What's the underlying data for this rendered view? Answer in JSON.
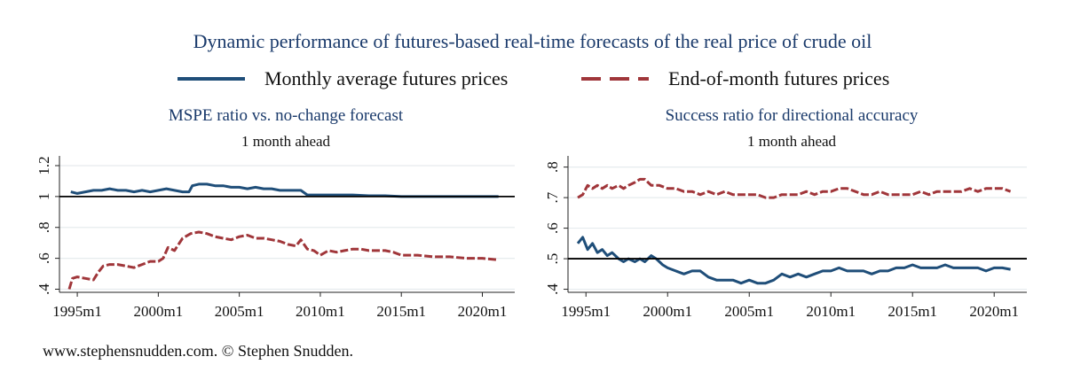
{
  "title": "Dynamic performance of futures-based real-time forecasts of the real price of crude oil",
  "legend": [
    {
      "name": "Monthly average futures prices",
      "color": "#1f4e79",
      "dash": "solid"
    },
    {
      "name": "End-of-month futures prices",
      "color": "#a0363a",
      "dash": "dashed"
    }
  ],
  "footer": "www.stephensnudden.com. © Stephen Snudden.",
  "chart_data": [
    {
      "type": "line",
      "title": "MSPE ratio vs. no-change forecast",
      "subtitle": "1 month ahead",
      "xlabel": "",
      "ylabel": "",
      "xlim": [
        1993.9,
        2022.0
      ],
      "ylim": [
        0.38,
        1.24
      ],
      "xticks": [
        1995,
        2000,
        2005,
        2010,
        2015,
        2020
      ],
      "xtick_labels": [
        "1995m1",
        "2000m1",
        "2005m1",
        "2010m1",
        "2015m1",
        "2020m1"
      ],
      "yticks": [
        0.4,
        0.6,
        0.8,
        1.0,
        1.2
      ],
      "ytick_labels": [
        ".4",
        ".6",
        ".8",
        "1",
        "1.2"
      ],
      "reference_line": 1.0,
      "grid": true,
      "series": [
        {
          "name": "Monthly average futures prices",
          "color": "#1f4e79",
          "dash": "solid",
          "x": [
            1994.6,
            1995.0,
            1995.5,
            1996.0,
            1996.5,
            1997.0,
            1997.5,
            1998.0,
            1998.5,
            1999.0,
            1999.5,
            2000.0,
            2000.5,
            2001.0,
            2001.5,
            2001.9,
            2002.1,
            2002.5,
            2003.0,
            2003.5,
            2004.0,
            2004.5,
            2005.0,
            2005.5,
            2006.0,
            2006.5,
            2007.0,
            2007.5,
            2008.0,
            2008.5,
            2008.8,
            2009.2,
            2010.0,
            2011.0,
            2012.0,
            2013.0,
            2014.0,
            2015.0,
            2016.0,
            2017.0,
            2018.0,
            2019.0,
            2020.0,
            2021.0
          ],
          "y": [
            1.03,
            1.02,
            1.03,
            1.04,
            1.04,
            1.05,
            1.04,
            1.04,
            1.03,
            1.04,
            1.03,
            1.04,
            1.05,
            1.04,
            1.03,
            1.03,
            1.07,
            1.08,
            1.08,
            1.07,
            1.07,
            1.06,
            1.06,
            1.05,
            1.06,
            1.05,
            1.05,
            1.04,
            1.04,
            1.04,
            1.04,
            1.01,
            1.01,
            1.01,
            1.01,
            1.005,
            1.005,
            1.0,
            1.0,
            1.0,
            1.0,
            1.0,
            1.0,
            1.0
          ]
        },
        {
          "name": "End-of-month futures prices",
          "color": "#a0363a",
          "dash": "dashed",
          "x": [
            1994.5,
            1994.7,
            1995.0,
            1995.5,
            1996.0,
            1996.3,
            1996.6,
            1997.0,
            1997.5,
            1998.0,
            1998.5,
            1999.0,
            1999.5,
            2000.0,
            2000.3,
            2000.6,
            2001.0,
            2001.5,
            2002.0,
            2002.5,
            2003.0,
            2003.5,
            2004.0,
            2004.5,
            2005.0,
            2005.5,
            2006.0,
            2006.5,
            2007.0,
            2007.5,
            2008.0,
            2008.5,
            2008.8,
            2009.2,
            2009.6,
            2010.0,
            2010.5,
            2011.0,
            2011.5,
            2012.0,
            2012.5,
            2013.0,
            2013.5,
            2014.0,
            2014.5,
            2015.0,
            2016.0,
            2017.0,
            2018.0,
            2019.0,
            2020.0,
            2021.0
          ],
          "y": [
            0.4,
            0.47,
            0.48,
            0.47,
            0.46,
            0.51,
            0.55,
            0.56,
            0.56,
            0.55,
            0.54,
            0.56,
            0.58,
            0.58,
            0.6,
            0.67,
            0.65,
            0.73,
            0.76,
            0.77,
            0.76,
            0.74,
            0.73,
            0.72,
            0.74,
            0.75,
            0.73,
            0.73,
            0.72,
            0.71,
            0.69,
            0.68,
            0.72,
            0.66,
            0.65,
            0.62,
            0.65,
            0.64,
            0.65,
            0.66,
            0.66,
            0.65,
            0.65,
            0.65,
            0.64,
            0.62,
            0.62,
            0.61,
            0.61,
            0.6,
            0.6,
            0.59
          ]
        }
      ]
    },
    {
      "type": "line",
      "title": "Success ratio for directional accuracy",
      "subtitle": "1 month ahead",
      "xlabel": "",
      "ylabel": "",
      "xlim": [
        1993.9,
        2022.0
      ],
      "ylim": [
        0.39,
        0.825
      ],
      "xticks": [
        1995,
        2000,
        2005,
        2010,
        2015,
        2020
      ],
      "xtick_labels": [
        "1995m1",
        "2000m1",
        "2005m1",
        "2010m1",
        "2015m1",
        "2020m1"
      ],
      "yticks": [
        0.4,
        0.5,
        0.6,
        0.7,
        0.8
      ],
      "ytick_labels": [
        ".4",
        ".5",
        ".6",
        ".7",
        ".8"
      ],
      "reference_line": 0.5,
      "grid": true,
      "series": [
        {
          "name": "Monthly average futures prices",
          "color": "#1f4e79",
          "dash": "solid",
          "x": [
            1994.5,
            1994.8,
            1995.1,
            1995.4,
            1995.7,
            1996.0,
            1996.3,
            1996.6,
            1997.0,
            1997.3,
            1997.6,
            1998.0,
            1998.3,
            1998.6,
            1999.0,
            1999.3,
            1999.7,
            2000.0,
            2000.5,
            2001.0,
            2001.5,
            2002.0,
            2002.5,
            2003.0,
            2003.5,
            2004.0,
            2004.5,
            2005.0,
            2005.5,
            2006.0,
            2006.5,
            2007.0,
            2007.5,
            2008.0,
            2008.5,
            2009.0,
            2009.5,
            2010.0,
            2010.5,
            2011.0,
            2011.5,
            2012.0,
            2012.5,
            2013.0,
            2013.5,
            2014.0,
            2014.5,
            2015.0,
            2015.5,
            2016.0,
            2016.5,
            2017.0,
            2017.5,
            2018.0,
            2018.5,
            2019.0,
            2019.5,
            2020.0,
            2020.5,
            2021.0
          ],
          "y": [
            0.55,
            0.57,
            0.53,
            0.55,
            0.52,
            0.53,
            0.51,
            0.52,
            0.5,
            0.49,
            0.5,
            0.49,
            0.5,
            0.49,
            0.51,
            0.5,
            0.48,
            0.47,
            0.46,
            0.45,
            0.46,
            0.46,
            0.44,
            0.43,
            0.43,
            0.43,
            0.42,
            0.43,
            0.42,
            0.42,
            0.43,
            0.45,
            0.44,
            0.45,
            0.44,
            0.45,
            0.46,
            0.46,
            0.47,
            0.46,
            0.46,
            0.46,
            0.45,
            0.46,
            0.46,
            0.47,
            0.47,
            0.48,
            0.47,
            0.47,
            0.47,
            0.48,
            0.47,
            0.47,
            0.47,
            0.47,
            0.46,
            0.47,
            0.47,
            0.465
          ]
        },
        {
          "name": "End-of-month futures prices",
          "color": "#a0363a",
          "dash": "dashed",
          "x": [
            1994.5,
            1994.8,
            1995.1,
            1995.4,
            1995.7,
            1996.0,
            1996.3,
            1996.6,
            1997.0,
            1997.3,
            1997.6,
            1998.0,
            1998.3,
            1998.6,
            1999.0,
            1999.5,
            2000.0,
            2000.5,
            2001.0,
            2001.5,
            2002.0,
            2002.5,
            2003.0,
            2003.5,
            2004.0,
            2004.5,
            2005.0,
            2005.5,
            2006.0,
            2006.5,
            2007.0,
            2007.5,
            2008.0,
            2008.5,
            2009.0,
            2009.5,
            2010.0,
            2010.5,
            2011.0,
            2011.5,
            2012.0,
            2012.5,
            2013.0,
            2013.5,
            2014.0,
            2014.5,
            2015.0,
            2015.5,
            2016.0,
            2016.5,
            2017.0,
            2017.5,
            2018.0,
            2018.5,
            2019.0,
            2019.5,
            2020.0,
            2020.5,
            2021.0
          ],
          "y": [
            0.7,
            0.71,
            0.74,
            0.73,
            0.74,
            0.73,
            0.74,
            0.73,
            0.74,
            0.73,
            0.74,
            0.75,
            0.76,
            0.76,
            0.74,
            0.74,
            0.73,
            0.73,
            0.72,
            0.72,
            0.71,
            0.72,
            0.71,
            0.72,
            0.71,
            0.71,
            0.71,
            0.71,
            0.7,
            0.7,
            0.71,
            0.71,
            0.71,
            0.72,
            0.71,
            0.72,
            0.72,
            0.73,
            0.73,
            0.72,
            0.71,
            0.71,
            0.72,
            0.71,
            0.71,
            0.71,
            0.71,
            0.72,
            0.71,
            0.72,
            0.72,
            0.72,
            0.72,
            0.73,
            0.72,
            0.73,
            0.73,
            0.73,
            0.72
          ]
        }
      ]
    }
  ]
}
